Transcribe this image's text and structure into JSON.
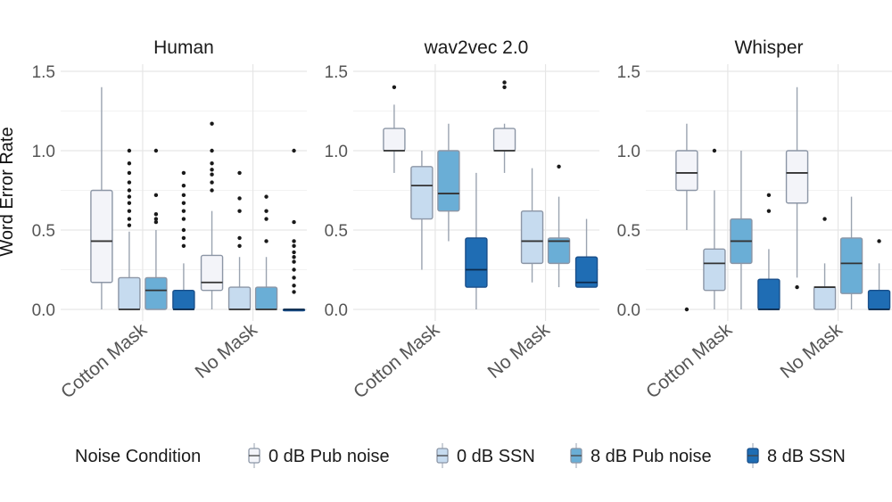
{
  "chart_data": {
    "type": "boxplot",
    "ylabel": "Word Error Rate",
    "ylim": [
      0,
      1.5
    ],
    "yticks": [
      0,
      0.5,
      1.0,
      1.5
    ],
    "ytick_labels": [
      "0.0",
      "0.5",
      "1.0",
      "1.5"
    ],
    "categories": [
      "Cotton Mask",
      "No Mask"
    ],
    "legend": {
      "title": "Noise Condition",
      "position": "bottom",
      "entries": [
        {
          "name": "0 dB Pub noise",
          "color": "#f3f4f9"
        },
        {
          "name": "0 dB SSN",
          "color": "#c6dbef"
        },
        {
          "name": "8 dB Pub noise",
          "color": "#6aaed6"
        },
        {
          "name": "8 dB SSN",
          "color": "#1f6db4"
        }
      ]
    },
    "panels": [
      {
        "title": "Human",
        "groups": [
          {
            "category": "Cotton Mask",
            "boxes": [
              {
                "series": "0 dB Pub noise",
                "whisker_low": 0.0,
                "q1": 0.17,
                "median": 0.43,
                "q3": 0.75,
                "whisker_high": 1.4,
                "outliers": []
              },
              {
                "series": "0 dB SSN",
                "whisker_low": 0.0,
                "q1": 0.0,
                "median": 0.0,
                "q3": 0.2,
                "whisker_high": 0.49,
                "outliers": [
                  1.0,
                  0.92,
                  0.86,
                  0.8,
                  0.75,
                  0.71,
                  0.67,
                  0.62,
                  0.57,
                  0.53
                ]
              },
              {
                "series": "8 dB Pub noise",
                "whisker_low": 0.0,
                "q1": 0.0,
                "median": 0.12,
                "q3": 0.2,
                "whisker_high": 0.5,
                "outliers": [
                  1.0,
                  0.72,
                  0.6,
                  0.57,
                  0.55
                ]
              },
              {
                "series": "8 dB SSN",
                "whisker_low": 0.0,
                "q1": 0.0,
                "median": 0.0,
                "q3": 0.12,
                "whisker_high": 0.29,
                "outliers": [
                  0.86,
                  0.78,
                  0.72,
                  0.67,
                  0.62,
                  0.57,
                  0.5,
                  0.45,
                  0.4
                ]
              }
            ]
          },
          {
            "category": "No Mask",
            "boxes": [
              {
                "series": "0 dB Pub noise",
                "whisker_low": 0.0,
                "q1": 0.12,
                "median": 0.17,
                "q3": 0.34,
                "whisker_high": 0.62,
                "outliers": [
                  1.17,
                  1.0,
                  0.92,
                  0.88,
                  0.85,
                  0.8,
                  0.75
                ]
              },
              {
                "series": "0 dB SSN",
                "whisker_low": 0.0,
                "q1": 0.0,
                "median": 0.0,
                "q3": 0.14,
                "whisker_high": 0.33,
                "outliers": [
                  0.86,
                  0.7,
                  0.62,
                  0.45,
                  0.4
                ]
              },
              {
                "series": "8 dB Pub noise",
                "whisker_low": 0.0,
                "q1": 0.0,
                "median": 0.0,
                "q3": 0.14,
                "whisker_high": 0.33,
                "outliers": [
                  0.71,
                  0.62,
                  0.57,
                  0.43
                ]
              },
              {
                "series": "8 dB SSN",
                "whisker_low": 0.0,
                "q1": 0.0,
                "median": 0.0,
                "q3": 0.0,
                "whisker_high": 0.0,
                "outliers": [
                  1.0,
                  0.55,
                  0.43,
                  0.4,
                  0.36,
                  0.33,
                  0.3,
                  0.25,
                  0.2,
                  0.15,
                  0.11
                ]
              }
            ]
          }
        ]
      },
      {
        "title": "wav2vec 2.0",
        "groups": [
          {
            "category": "Cotton Mask",
            "boxes": [
              {
                "series": "0 dB Pub noise",
                "whisker_low": 0.86,
                "q1": 1.0,
                "median": 1.0,
                "q3": 1.14,
                "whisker_high": 1.29,
                "outliers": [
                  1.4
                ]
              },
              {
                "series": "0 dB SSN",
                "whisker_low": 0.25,
                "q1": 0.57,
                "median": 0.78,
                "q3": 0.9,
                "whisker_high": 1.0,
                "outliers": []
              },
              {
                "series": "8 dB Pub noise",
                "whisker_low": 0.43,
                "q1": 0.62,
                "median": 0.73,
                "q3": 1.0,
                "whisker_high": 1.17,
                "outliers": []
              },
              {
                "series": "8 dB SSN",
                "whisker_low": 0.0,
                "q1": 0.14,
                "median": 0.25,
                "q3": 0.45,
                "whisker_high": 0.86,
                "outliers": []
              }
            ]
          },
          {
            "category": "No Mask",
            "boxes": [
              {
                "series": "0 dB Pub noise",
                "whisker_low": 0.86,
                "q1": 1.0,
                "median": 1.0,
                "q3": 1.14,
                "whisker_high": 1.17,
                "outliers": [
                  1.43,
                  1.4
                ]
              },
              {
                "series": "0 dB SSN",
                "whisker_low": 0.17,
                "q1": 0.29,
                "median": 0.43,
                "q3": 0.62,
                "whisker_high": 0.89,
                "outliers": []
              },
              {
                "series": "8 dB Pub noise",
                "whisker_low": 0.14,
                "q1": 0.29,
                "median": 0.43,
                "q3": 0.45,
                "whisker_high": 0.71,
                "outliers": [
                  0.9
                ]
              },
              {
                "series": "8 dB SSN",
                "whisker_low": 0.14,
                "q1": 0.14,
                "median": 0.17,
                "q3": 0.33,
                "whisker_high": 0.57,
                "outliers": []
              }
            ]
          }
        ]
      },
      {
        "title": "Whisper",
        "groups": [
          {
            "category": "Cotton Mask",
            "boxes": [
              {
                "series": "0 dB Pub noise",
                "whisker_low": 0.5,
                "q1": 0.75,
                "median": 0.86,
                "q3": 1.0,
                "whisker_high": 1.17,
                "outliers": [
                  0.0
                ]
              },
              {
                "series": "0 dB SSN",
                "whisker_low": 0.0,
                "q1": 0.12,
                "median": 0.29,
                "q3": 0.38,
                "whisker_high": 0.75,
                "outliers": [
                  1.0
                ]
              },
              {
                "series": "8 dB Pub noise",
                "whisker_low": 0.0,
                "q1": 0.29,
                "median": 0.43,
                "q3": 0.57,
                "whisker_high": 1.0,
                "outliers": []
              },
              {
                "series": "8 dB SSN",
                "whisker_low": 0.0,
                "q1": 0.0,
                "median": 0.0,
                "q3": 0.19,
                "whisker_high": 0.38,
                "outliers": [
                  0.72,
                  0.62
                ]
              }
            ]
          },
          {
            "category": "No Mask",
            "boxes": [
              {
                "series": "0 dB Pub noise",
                "whisker_low": 0.2,
                "q1": 0.67,
                "median": 0.86,
                "q3": 1.0,
                "whisker_high": 1.4,
                "outliers": [
                  0.14
                ]
              },
              {
                "series": "0 dB SSN",
                "whisker_low": 0.0,
                "q1": 0.0,
                "median": 0.14,
                "q3": 0.14,
                "whisker_high": 0.29,
                "outliers": [
                  0.57
                ]
              },
              {
                "series": "8 dB Pub noise",
                "whisker_low": 0.0,
                "q1": 0.1,
                "median": 0.29,
                "q3": 0.45,
                "whisker_high": 0.71,
                "outliers": []
              },
              {
                "series": "8 dB SSN",
                "whisker_low": 0.0,
                "q1": 0.0,
                "median": 0.0,
                "q3": 0.12,
                "whisker_high": 0.29,
                "outliers": [
                  0.43
                ]
              }
            ]
          }
        ]
      }
    ]
  }
}
